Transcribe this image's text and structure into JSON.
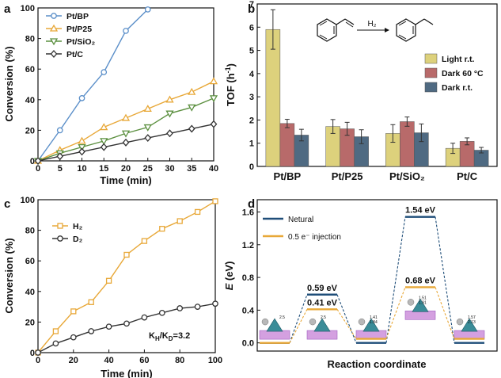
{
  "panels": [
    "a",
    "b",
    "c",
    "d"
  ],
  "chart_data": [
    {
      "id": "a",
      "type": "line",
      "xlabel": "Time (min)",
      "ylabel": "Conversion (%)",
      "xlim": [
        0,
        40
      ],
      "ylim": [
        0,
        100
      ],
      "xticks": [
        0,
        5,
        10,
        15,
        20,
        25,
        30,
        35,
        40
      ],
      "yticks": [
        0,
        20,
        40,
        60,
        80,
        100
      ],
      "legend_position": "top-left",
      "series": [
        {
          "name": "Pt/BP",
          "color": "#5b8fc9",
          "marker": "circle",
          "x": [
            0,
            5,
            10,
            15,
            20,
            25
          ],
          "values": [
            0,
            20,
            41,
            58,
            85,
            99
          ]
        },
        {
          "name": "Pt/P25",
          "color": "#e8a838",
          "marker": "triangle-up",
          "x": [
            0,
            5,
            10,
            15,
            20,
            25,
            30,
            35,
            40
          ],
          "values": [
            0,
            7,
            13,
            22,
            28,
            34,
            40,
            45,
            52
          ]
        },
        {
          "name": "Pt/SiO₂",
          "color": "#5c9040",
          "marker": "triangle-down",
          "x": [
            0,
            5,
            10,
            15,
            20,
            25,
            30,
            35,
            40
          ],
          "values": [
            0,
            5,
            9,
            13,
            18,
            22,
            31,
            35,
            41
          ]
        },
        {
          "name": "Pt/C",
          "color": "#333333",
          "marker": "diamond",
          "x": [
            0,
            5,
            10,
            15,
            20,
            25,
            30,
            35,
            40
          ],
          "values": [
            0,
            3,
            6,
            9,
            12,
            15,
            18,
            21,
            24
          ]
        }
      ]
    },
    {
      "id": "b",
      "type": "bar",
      "ylabel": "TOF (h",
      "ylabel_sup": "-1",
      "ylabel_close": ")",
      "ylim": [
        0,
        7
      ],
      "yticks": [
        0,
        1,
        2,
        3,
        4,
        5,
        6,
        7
      ],
      "categories": [
        "Pt/BP",
        "Pt/P25",
        "Pt/SiO₂",
        "Pt/C"
      ],
      "legend_position": "right",
      "reaction_reagent": "H₂",
      "series": [
        {
          "name": "Light r.t.",
          "color": "#ddd17c",
          "values": [
            5.9,
            1.72,
            1.42,
            0.78
          ],
          "errors": [
            0.85,
            0.3,
            0.38,
            0.22
          ]
        },
        {
          "name": "Dark 60 °C",
          "color": "#b86a6a",
          "values": [
            1.85,
            1.62,
            1.93,
            1.08
          ],
          "errors": [
            0.18,
            0.28,
            0.2,
            0.15
          ]
        },
        {
          "name": "Dark r.t.",
          "color": "#4f6a82",
          "values": [
            1.35,
            1.28,
            1.45,
            0.7
          ],
          "errors": [
            0.25,
            0.3,
            0.38,
            0.12
          ]
        }
      ]
    },
    {
      "id": "c",
      "type": "line",
      "xlabel": "Time (min)",
      "ylabel": "Conversion (%)",
      "xlim": [
        0,
        100
      ],
      "ylim": [
        0,
        100
      ],
      "xticks": [
        0,
        20,
        40,
        60,
        80,
        100
      ],
      "yticks": [
        0,
        20,
        40,
        60,
        80,
        100
      ],
      "legend_position": "top-left",
      "annotation": "K",
      "annotation_sub1": "H",
      "annotation_mid": "/K",
      "annotation_sub2": "D",
      "annotation_end": "=3.2",
      "series": [
        {
          "name": "H₂",
          "color": "#e8a838",
          "marker": "square",
          "x": [
            0,
            10,
            20,
            30,
            40,
            50,
            60,
            70,
            80,
            90,
            100
          ],
          "values": [
            0,
            14,
            27,
            33,
            47,
            64,
            73,
            81,
            86,
            92,
            99
          ]
        },
        {
          "name": "D₂",
          "color": "#333333",
          "marker": "circle",
          "x": [
            0,
            10,
            20,
            30,
            40,
            50,
            60,
            70,
            80,
            90,
            100
          ],
          "values": [
            0,
            6,
            10,
            14,
            17,
            19,
            23,
            26,
            29,
            30,
            32
          ]
        }
      ]
    },
    {
      "id": "d",
      "type": "line",
      "subtype": "energy-profile",
      "xlabel": "Reaction coordinate",
      "ylabel_italic": "E",
      "ylabel_rest": " (eV)",
      "ylim": [
        -0.1,
        1.75
      ],
      "yticks": [
        "0.0",
        "0.4",
        "0.8",
        "1.2",
        "1.6"
      ],
      "legend_position": "top-left",
      "series": [
        {
          "name": "Netural",
          "color": "#1f4e79",
          "levels": [
            0.0,
            0.59,
            0.0,
            1.54,
            0.0
          ]
        },
        {
          "name": "0.5 e⁻ injection",
          "color": "#e8a838",
          "levels": [
            0.0,
            0.41,
            0.05,
            0.68,
            0.05
          ]
        }
      ],
      "energy_labels": [
        "0.59 eV",
        "0.41 eV",
        "1.54 eV",
        "0.68 eV"
      ],
      "structure_labels": [
        [
          "2.5"
        ],
        [
          "1.41",
          "1.84"
        ],
        [
          "1.51",
          "1.91"
        ],
        [
          "1.57",
          "2.13"
        ]
      ]
    }
  ]
}
